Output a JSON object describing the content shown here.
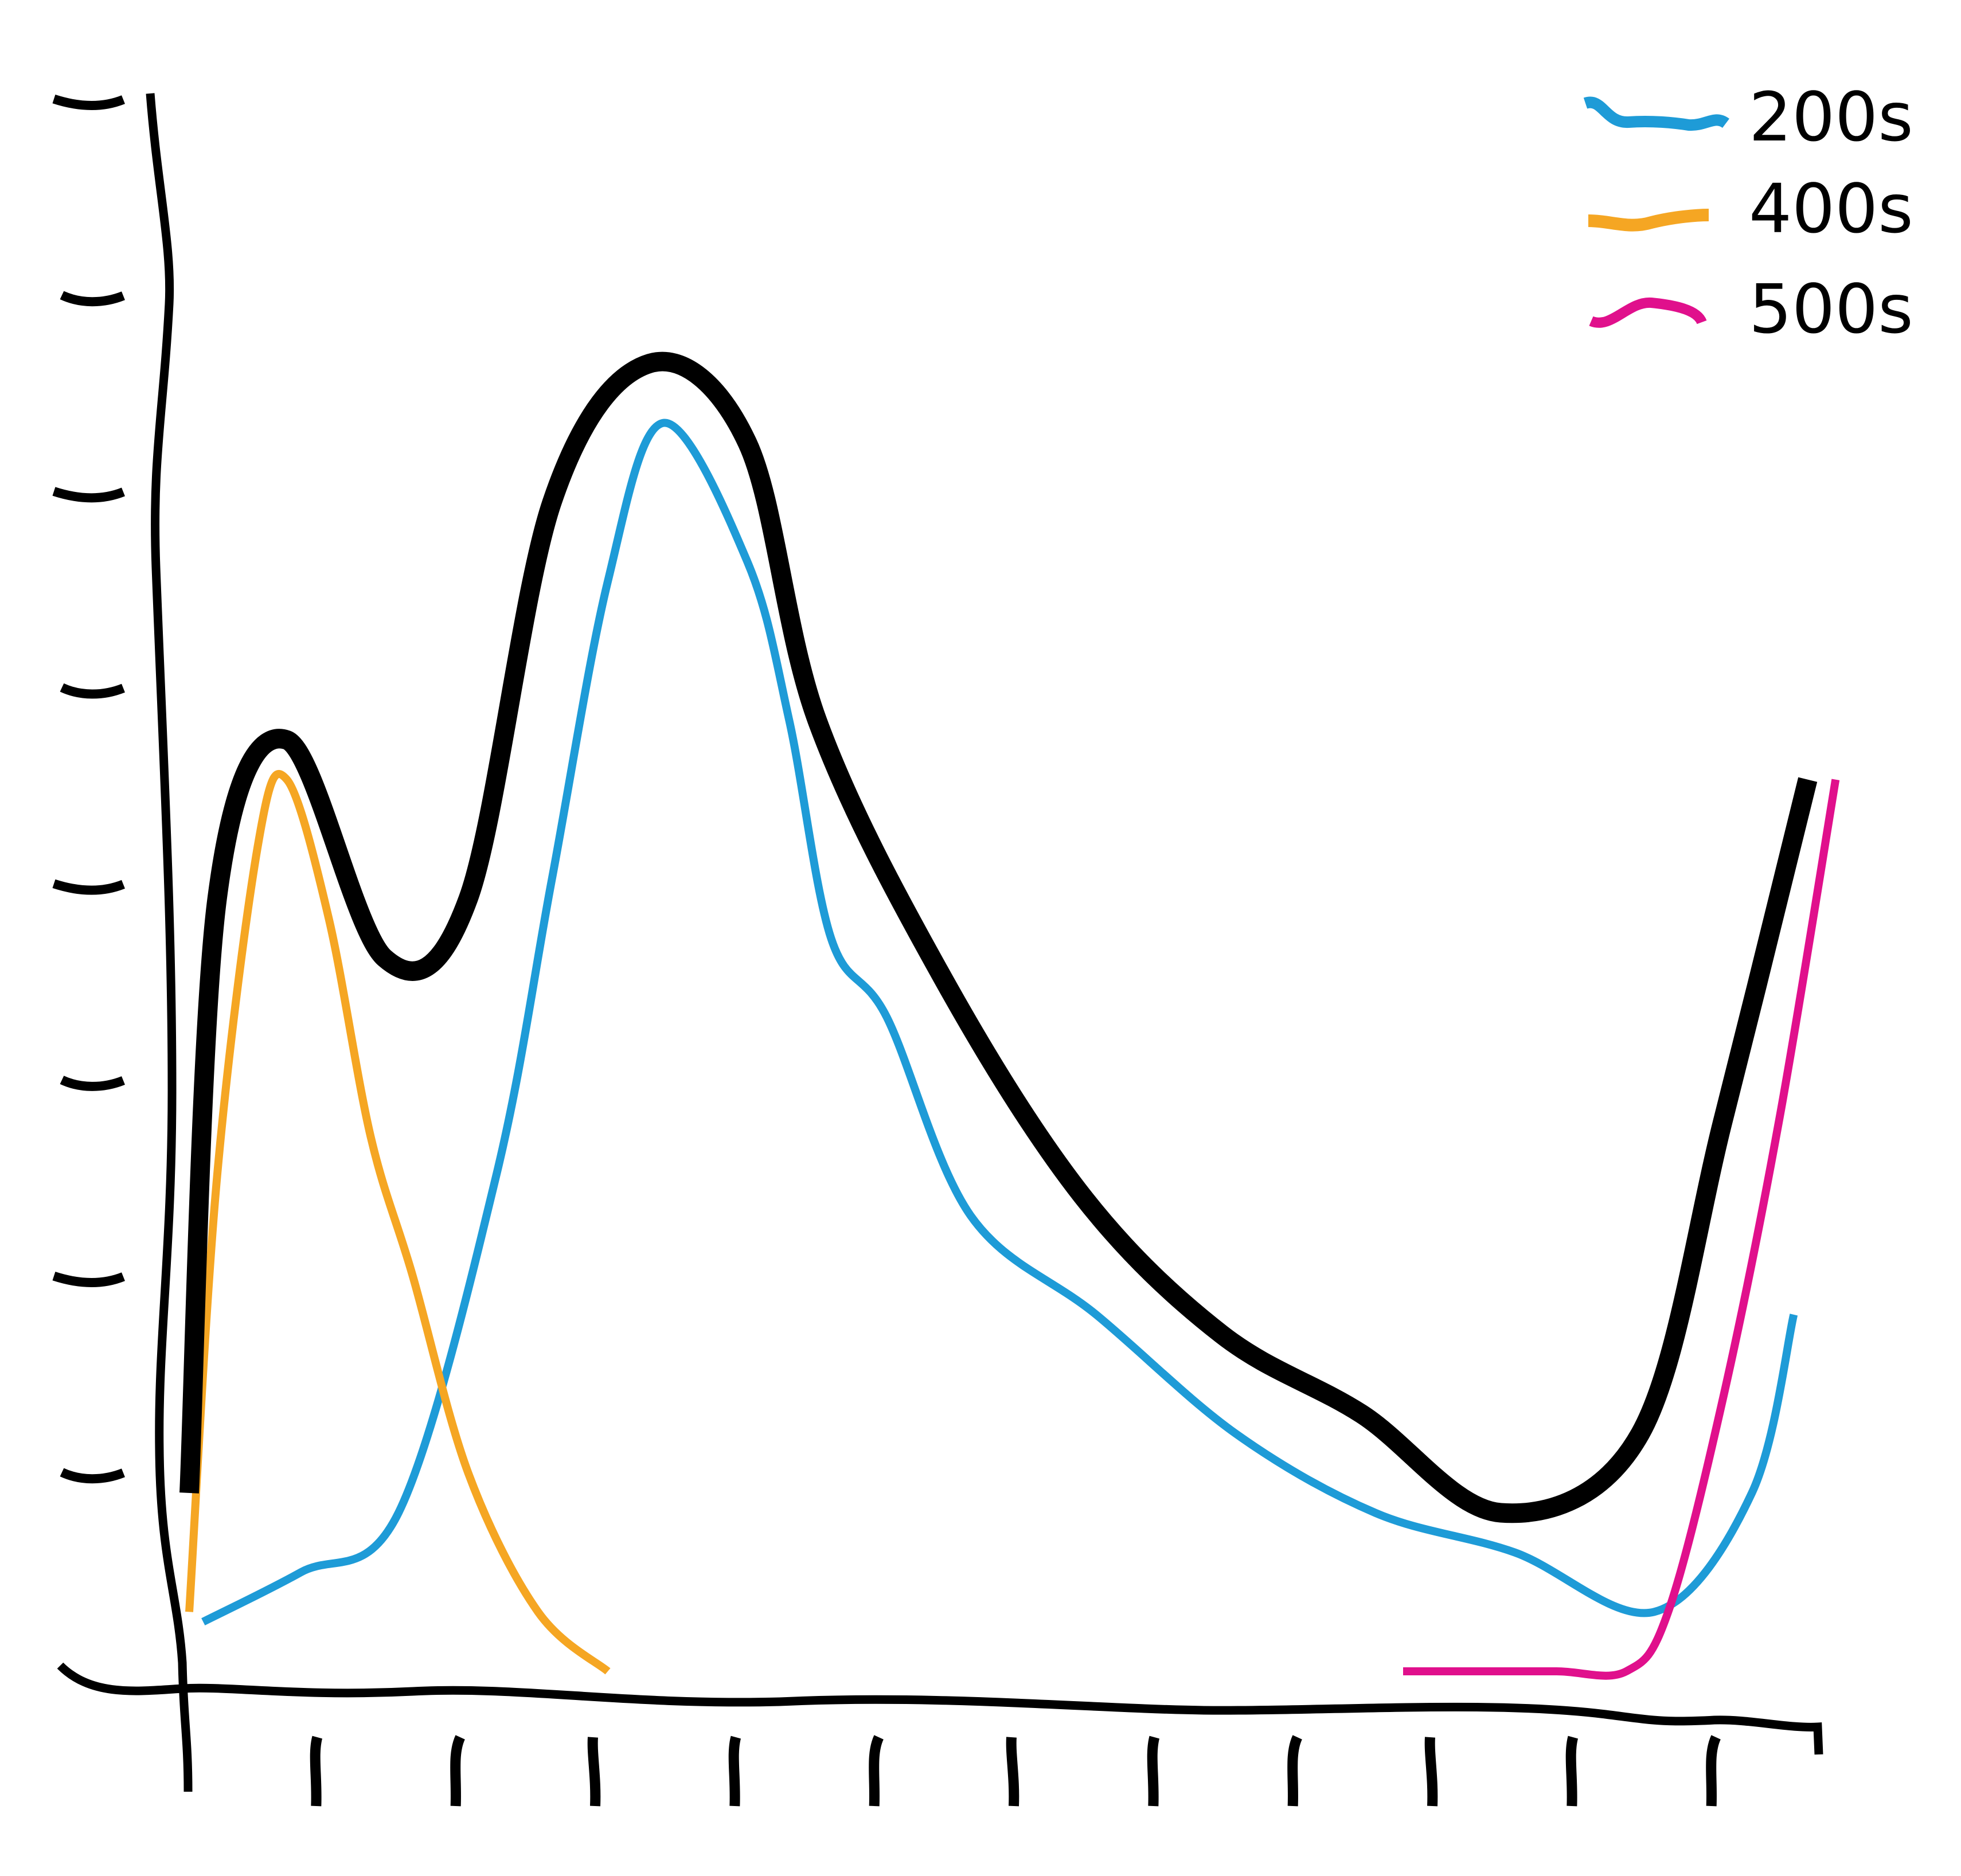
{
  "colors": {
    "background": "#ffffff",
    "axis": "#000000",
    "total": "#000000",
    "s200": "#1e9bd7",
    "s400": "#f5a623",
    "s500": "#e0108c"
  },
  "legend": {
    "placement": "top-right",
    "items": [
      {
        "label": "200s",
        "color": "#1e9bd7"
      },
      {
        "label": "400s",
        "color": "#f5a623"
      },
      {
        "label": "500s",
        "color": "#e0108c"
      }
    ]
  },
  "chart_data": {
    "type": "line",
    "title": "",
    "xlabel": "",
    "ylabel": "",
    "style": "hand-drawn sketch",
    "grid": false,
    "x_ticks": 11,
    "y_ticks": 8,
    "tick_labels_printed": false,
    "xlim": [
      0,
      12
    ],
    "ylim": [
      0,
      8
    ],
    "series": [
      {
        "key": "total",
        "line": "thick",
        "color": "#000000",
        "points": [
          [
            0,
            0.9
          ],
          [
            0.2,
            3.9
          ],
          [
            0.7,
            4.7
          ],
          [
            1.4,
            3.6
          ],
          [
            2.0,
            3.9
          ],
          [
            2.6,
            5.9
          ],
          [
            3.3,
            6.6
          ],
          [
            4.0,
            6.2
          ],
          [
            4.5,
            4.8
          ],
          [
            5.4,
            3.5
          ],
          [
            6.4,
            2.4
          ],
          [
            7.4,
            1.7
          ],
          [
            8.4,
            1.3
          ],
          [
            9.4,
            0.8
          ],
          [
            10.4,
            1.2
          ],
          [
            11.0,
            2.8
          ],
          [
            11.6,
            4.5
          ]
        ]
      },
      {
        "key": "200s",
        "line": "thin",
        "color": "#1e9bd7",
        "points": [
          [
            0.1,
            0.25
          ],
          [
            0.8,
            0.5
          ],
          [
            1.5,
            0.8
          ],
          [
            2.2,
            2.5
          ],
          [
            2.6,
            4.0
          ],
          [
            3.0,
            5.5
          ],
          [
            3.4,
            6.3
          ],
          [
            4.0,
            5.6
          ],
          [
            4.3,
            4.8
          ],
          [
            4.6,
            3.7
          ],
          [
            5.0,
            3.3
          ],
          [
            5.6,
            2.3
          ],
          [
            6.5,
            1.8
          ],
          [
            7.5,
            1.2
          ],
          [
            8.5,
            0.8
          ],
          [
            9.5,
            0.6
          ],
          [
            10.5,
            0.3
          ],
          [
            11.2,
            0.9
          ],
          [
            11.5,
            1.8
          ]
        ]
      },
      {
        "key": "400s",
        "line": "thin",
        "color": "#f5a623",
        "points": [
          [
            0.0,
            0.3
          ],
          [
            0.2,
            2.5
          ],
          [
            0.5,
            4.2
          ],
          [
            0.7,
            4.5
          ],
          [
            1.0,
            3.8
          ],
          [
            1.3,
            2.7
          ],
          [
            1.6,
            2.0
          ],
          [
            2.0,
            1.0
          ],
          [
            2.5,
            0.3
          ],
          [
            3.0,
            0.0
          ]
        ]
      },
      {
        "key": "500s",
        "line": "thin",
        "color": "#e0108c",
        "points": [
          [
            8.7,
            0.0
          ],
          [
            9.2,
            0.0
          ],
          [
            9.8,
            0.0
          ],
          [
            10.3,
            0.0
          ],
          [
            10.6,
            0.3
          ],
          [
            11.0,
            1.4
          ],
          [
            11.4,
            2.8
          ],
          [
            11.8,
            4.5
          ]
        ]
      }
    ]
  }
}
